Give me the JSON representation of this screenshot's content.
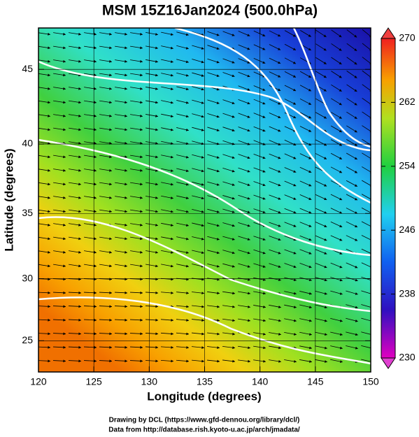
{
  "chart_data": {
    "type": "map",
    "title": "MSM 15Z16Jan2024 (500.0hPa)",
    "xlabel": "Longitude (degrees)",
    "ylabel": "Latitude  (degrees)",
    "projection": "mercator",
    "xlim": [
      120,
      150
    ],
    "xticks": [
      120,
      125,
      130,
      135,
      140,
      145,
      150
    ],
    "ylim": [
      22.4,
      47.6
    ],
    "yticks": [
      25,
      30,
      35,
      40,
      45
    ],
    "grid": true,
    "colorbar": {
      "clim": [
        230,
        270
      ],
      "ticks": [
        230,
        238,
        246,
        254,
        262,
        270
      ]
    },
    "credits": [
      "Drawing by DCL (https://www.gfd-dennou.org/library/dcl/)",
      "Data from http://database.rish.kyoto-u.ac.jp/arch/jmadata/"
    ]
  }
}
